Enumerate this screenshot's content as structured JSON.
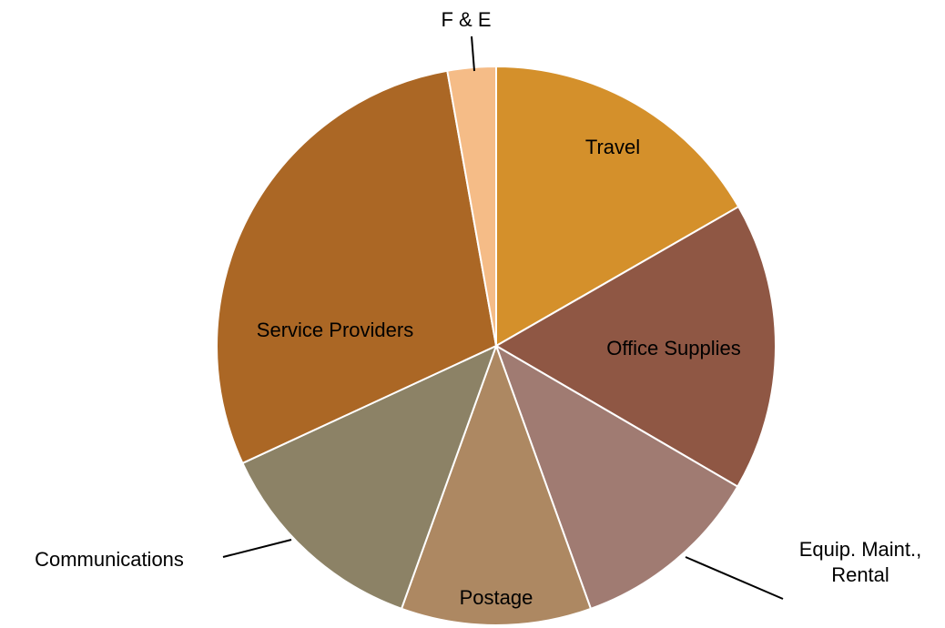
{
  "chart_data": {
    "type": "pie",
    "categories": [
      "Travel",
      "Office Supplies",
      "Equip. Maint., Rental",
      "Postage",
      "Communications",
      "Service Providers",
      "F & E"
    ],
    "values": [
      16.7,
      16.7,
      11.1,
      11.0,
      12.6,
      29.1,
      2.8
    ],
    "colors": [
      "#D4902B",
      "#8F5744",
      "#A07B72",
      "#AD8862",
      "#8C8266",
      "#AB6725",
      "#F5BC87"
    ]
  }
}
